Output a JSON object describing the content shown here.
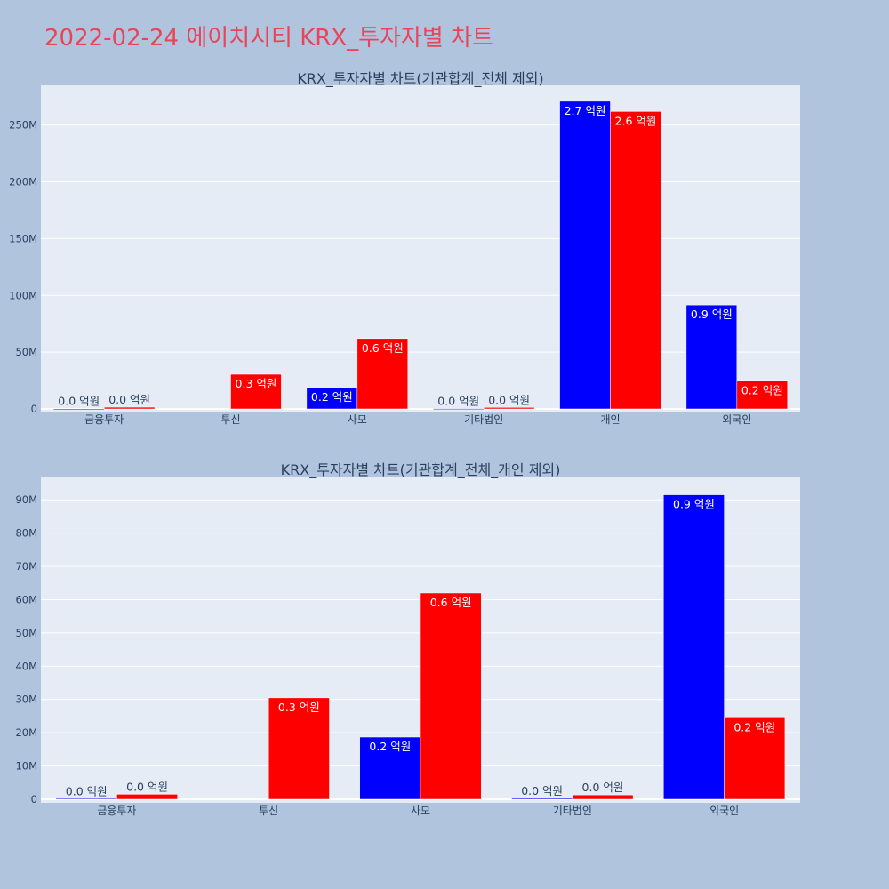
{
  "page_title": "2022-02-24 에이치시티 KRX_투자자별 차트",
  "colors": {
    "background": "#b0c4de",
    "plot_bg": "#e5ecf6",
    "title": "#e8455a",
    "series_1": "#0000ff",
    "series_2": "#ff0000"
  },
  "chart_data": [
    {
      "type": "bar",
      "title": "KRX_투자자별 차트(기관합계_전체 제외)",
      "categories": [
        "금융투자",
        "투신",
        "사모",
        "기타법인",
        "개인",
        "외국인"
      ],
      "series": [
        {
          "color": "#0000ff",
          "values": [
            200000,
            0,
            18700000,
            300000,
            271000000,
            91500000
          ],
          "labels": [
            "0.0 억원",
            "",
            "0.2 억원",
            "0.0 억원",
            "2.7 억원",
            "0.9 억원"
          ]
        },
        {
          "color": "#ff0000",
          "values": [
            1500000,
            30500000,
            62000000,
            1300000,
            262000000,
            24500000
          ],
          "labels": [
            "0.0 억원",
            "0.3 억원",
            "0.6 억원",
            "0.0 억원",
            "2.6 억원",
            "0.2 억원"
          ]
        }
      ],
      "ylim": [
        0,
        285000000
      ],
      "yticks": [
        0,
        50000000,
        100000000,
        150000000,
        200000000,
        250000000
      ],
      "yticklabels": [
        "0",
        "50M",
        "100M",
        "150M",
        "200M",
        "250M"
      ],
      "grid": true
    },
    {
      "type": "bar",
      "title": "KRX_투자자별 차트(기관합계_전체_개인 제외)",
      "categories": [
        "금융투자",
        "투신",
        "사모",
        "기타법인",
        "외국인"
      ],
      "series": [
        {
          "color": "#0000ff",
          "values": [
            200000,
            0,
            18700000,
            300000,
            91500000
          ],
          "labels": [
            "0.0 억원",
            "",
            "0.2 억원",
            "0.0 억원",
            "0.9 억원"
          ]
        },
        {
          "color": "#ff0000",
          "values": [
            1500000,
            30500000,
            62000000,
            1300000,
            24500000
          ],
          "labels": [
            "0.0 억원",
            "0.3 억원",
            "0.6 억원",
            "0.0 억원",
            "0.2 억원"
          ]
        }
      ],
      "ylim": [
        0,
        97000000
      ],
      "yticks": [
        0,
        10000000,
        20000000,
        30000000,
        40000000,
        50000000,
        60000000,
        70000000,
        80000000,
        90000000
      ],
      "yticklabels": [
        "0",
        "10M",
        "20M",
        "30M",
        "40M",
        "50M",
        "60M",
        "70M",
        "80M",
        "90M"
      ],
      "grid": true
    }
  ]
}
